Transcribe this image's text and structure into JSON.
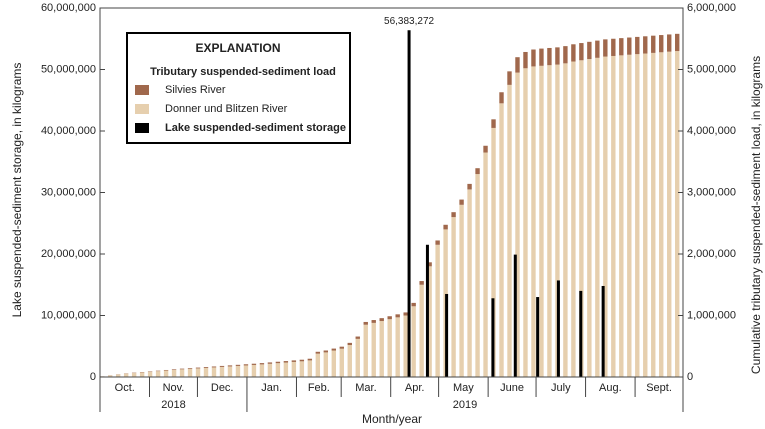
{
  "chart_data": {
    "type": "bar",
    "x_label": "Month/year",
    "y_label": "Lake suspended-sediment storage, in kilograms",
    "y2_label": "Cumulative tributary suspended-sediment load, in kilograms",
    "legend_title": "EXPLANATION",
    "legend_subtitle": "Tributary suspended-sediment load",
    "xlim": [
      0,
      365
    ],
    "xticks": [
      0,
      31,
      61,
      92,
      123,
      151,
      182,
      212,
      243,
      273,
      304,
      335,
      365
    ],
    "month_labels": [
      {
        "value": 15.5,
        "label": "Oct."
      },
      {
        "value": 46,
        "label": "Nov."
      },
      {
        "value": 76.5,
        "label": "Dec."
      },
      {
        "value": 107.5,
        "label": "Jan."
      },
      {
        "value": 137,
        "label": "Feb."
      },
      {
        "value": 166.5,
        "label": "Mar."
      },
      {
        "value": 197,
        "label": "Apr."
      },
      {
        "value": 227.5,
        "label": "May"
      },
      {
        "value": 258,
        "label": "June"
      },
      {
        "value": 288.5,
        "label": "July"
      },
      {
        "value": 319.5,
        "label": "Aug."
      },
      {
        "value": 350,
        "label": "Sept."
      }
    ],
    "year_labels": [
      {
        "value": 46,
        "label": "2018"
      },
      {
        "value": 228.5,
        "label": "2019"
      }
    ],
    "ylim": [
      0,
      60000000
    ],
    "yticks": [
      0,
      {
        "value": 10000000,
        "label": "10,000,000"
      },
      {
        "value": 20000000,
        "label": "20,000,000"
      },
      {
        "value": 30000000,
        "label": "30,000,000"
      },
      {
        "value": 40000000,
        "label": "40,000,000"
      },
      {
        "value": 50000000,
        "label": "50,000,000"
      },
      {
        "value": 60000000,
        "label": "60,000,000"
      }
    ],
    "y2lim": [
      0,
      6000000
    ],
    "y2ticks": [
      0,
      {
        "value": 1000000,
        "label": "1,000,000"
      },
      {
        "value": 2000000,
        "label": "2,000,000"
      },
      {
        "value": 3000000,
        "label": "3,000,000"
      },
      {
        "value": 4000000,
        "label": "4,000,000"
      },
      {
        "value": 5000000,
        "label": "5,000,000"
      },
      {
        "value": 6000000,
        "label": "6,000,000"
      }
    ],
    "x": [
      0,
      5,
      10,
      15,
      20,
      25,
      30,
      35,
      40,
      45,
      50,
      55,
      60,
      65,
      70,
      75,
      80,
      85,
      90,
      95,
      100,
      105,
      110,
      115,
      120,
      125,
      130,
      135,
      140,
      145,
      150,
      155,
      160,
      165,
      170,
      175,
      180,
      185,
      190,
      195,
      200,
      205,
      210,
      215,
      220,
      225,
      230,
      235,
      240,
      245,
      250,
      255,
      260,
      265,
      270,
      275,
      280,
      285,
      290,
      295,
      300,
      305,
      310,
      315,
      320,
      325,
      330,
      335,
      340,
      345,
      350,
      355,
      360
    ],
    "series": [
      {
        "name": "Donner und Blitzen River",
        "color": "#e6cfae",
        "axis": "y2",
        "stack": true,
        "values": [
          10000,
          25000,
          40000,
          55000,
          65000,
          75000,
          85000,
          95000,
          105000,
          115000,
          125000,
          132000,
          140000,
          148000,
          156000,
          164000,
          172000,
          180000,
          188000,
          196000,
          205000,
          215000,
          225000,
          235000,
          245000,
          255000,
          270000,
          380000,
          400000,
          430000,
          460000,
          520000,
          620000,
          850000,
          880000,
          910000,
          940000,
          970000,
          1000000,
          1150000,
          1500000,
          1800000,
          2150000,
          2400000,
          2600000,
          2800000,
          3050000,
          3300000,
          3650000,
          4050000,
          4450000,
          4750000,
          4950000,
          5020000,
          5050000,
          5060000,
          5070000,
          5080000,
          5100000,
          5130000,
          5150000,
          5170000,
          5190000,
          5210000,
          5220000,
          5230000,
          5240000,
          5250000,
          5260000,
          5270000,
          5280000,
          5290000,
          5300000
        ]
      },
      {
        "name": "Silvies River",
        "color": "#a0684c",
        "axis": "y2",
        "stack": true,
        "values": [
          1000,
          2000,
          3000,
          4000,
          5000,
          6000,
          7000,
          8000,
          9000,
          10000,
          11000,
          12000,
          13000,
          14000,
          15000,
          16000,
          17000,
          18000,
          19000,
          20000,
          21000,
          22000,
          23000,
          24000,
          25000,
          26000,
          27000,
          30000,
          31000,
          32000,
          33000,
          35000,
          38000,
          45000,
          46000,
          47000,
          48000,
          49000,
          50000,
          55000,
          60000,
          65000,
          70000,
          75000,
          80000,
          85000,
          90000,
          95000,
          110000,
          140000,
          180000,
          220000,
          250000,
          265000,
          275000,
          280000,
          280000,
          280000,
          280000,
          280000,
          280000,
          280000,
          280000,
          280000,
          280000,
          280000,
          280000,
          280000,
          280000,
          280000,
          280000,
          280000,
          280000
        ]
      }
    ],
    "storage": {
      "name": "Lake suspended-sediment storage",
      "color": "#000000",
      "x": [
        193.5,
        205,
        217,
        246,
        260,
        274,
        287,
        301,
        315
      ],
      "values": [
        56383272,
        21500000,
        13500000,
        12800000,
        19900000,
        13000000,
        15700000,
        14000000,
        14800000
      ],
      "value_labels": [
        "56,383,272",
        null,
        null,
        null,
        null,
        null,
        null,
        null,
        null
      ]
    }
  }
}
